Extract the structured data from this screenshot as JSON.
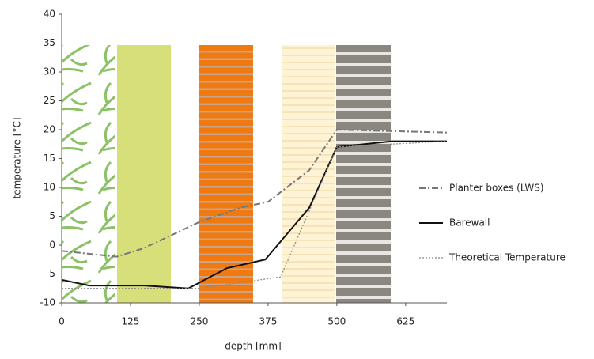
{
  "chart_data": {
    "type": "line",
    "xlabel": "depth [mm]",
    "ylabel": "temperature [°C]",
    "xlim": [
      0,
      700
    ],
    "xticks": [
      0,
      125,
      250,
      375,
      500,
      625
    ],
    "ylim": [
      -10,
      40
    ],
    "yticks": [
      -10,
      -5,
      0,
      5,
      10,
      15,
      20,
      25,
      30,
      35,
      40
    ],
    "legend": "right",
    "series": [
      {
        "name": "Planter boxes (LWS)",
        "color": "#777777",
        "dash": "dashdot",
        "x": [
          0,
          100,
          150,
          250,
          325,
          375,
          450,
          500,
          700
        ],
        "values": [
          -1,
          -2,
          -0.5,
          4,
          6.5,
          7.5,
          13,
          20,
          19.5
        ]
      },
      {
        "name": "Barewall",
        "color": "#111111",
        "dash": "solid",
        "x": [
          0,
          50,
          150,
          230,
          260,
          300,
          370,
          450,
          500,
          600,
          700
        ],
        "values": [
          -6,
          -7,
          -7,
          -7.5,
          -6,
          -4,
          -2.5,
          6.5,
          17,
          18,
          18
        ]
      },
      {
        "name": "Theoretical Temperature",
        "color": "#888888",
        "dash": "dotted",
        "x": [
          0,
          250,
          398,
          500,
          700
        ],
        "values": [
          -7.5,
          -7.5,
          -5.5,
          17,
          18
        ]
      }
    ]
  }
}
